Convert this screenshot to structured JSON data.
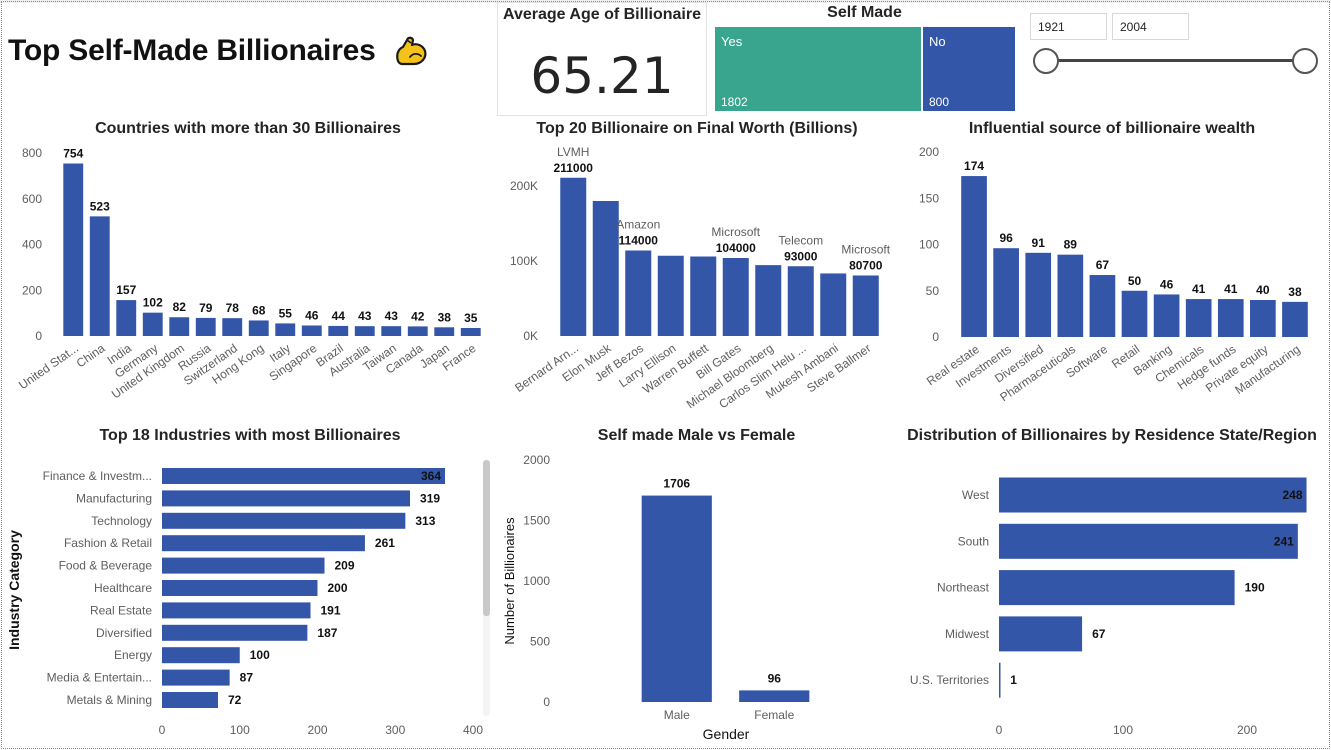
{
  "header": {
    "title": "Top Self-Made Billionaires",
    "icon": "flexed-biceps-icon"
  },
  "kpi": {
    "label": "Average Age of Billionaire",
    "value": "65.21"
  },
  "self_made": {
    "title": "Self Made",
    "tiles": [
      {
        "label": "Yes",
        "count": "1802",
        "color": "#3aa58e"
      },
      {
        "label": "No",
        "count": "800",
        "color": "#3456a8"
      }
    ]
  },
  "year_slicer": {
    "start": "1921",
    "end": "2004",
    "min": 1921,
    "max": 2004
  },
  "colors": {
    "bar": "#3456a8",
    "text": "#252423",
    "axis": "#605e5c"
  },
  "chart_data": [
    {
      "id": "countries",
      "type": "bar",
      "title": "Countries with more than 30 Billionaires",
      "categories": [
        "United Stat...",
        "China",
        "India",
        "Germany",
        "United Kingdom",
        "Russia",
        "Switzerland",
        "Hong Kong",
        "Italy",
        "Singapore",
        "Brazil",
        "Australia",
        "Taiwan",
        "Canada",
        "Japan",
        "France"
      ],
      "values": [
        754,
        523,
        157,
        102,
        82,
        79,
        78,
        68,
        55,
        46,
        44,
        43,
        43,
        42,
        38,
        35
      ],
      "ylim": [
        0,
        800
      ],
      "yticks": [
        "0",
        "200",
        "400",
        "600",
        "800"
      ],
      "ytick_values": [
        0,
        200,
        400,
        600,
        800
      ]
    },
    {
      "id": "top20",
      "type": "bar",
      "title": "Top 20 Billionaire on Final Worth (Billions)",
      "categories": [
        "Bernard Arn...",
        "Elon Musk",
        "Jeff Bezos",
        "Larry Ellison",
        "Warren Buffett",
        "Bill Gates",
        "Michael Bloomberg",
        "Carlos Slim Helu ...",
        "Mukesh Ambani",
        "Steve Ballmer"
      ],
      "values": [
        211000,
        180000,
        114000,
        107000,
        106000,
        104000,
        94500,
        93000,
        83400,
        80700
      ],
      "labels": [
        "211000",
        "",
        "114000",
        "",
        "",
        "104000",
        "",
        "93000",
        "",
        "80700"
      ],
      "sources": [
        "LVMH",
        "",
        "Amazon",
        "",
        "",
        "Microsoft",
        "",
        "Telecom",
        "",
        "Microsoft"
      ],
      "ylim": [
        0,
        240000
      ],
      "yticks": [
        "0K",
        "100K",
        "200K"
      ],
      "ytick_values": [
        0,
        100000,
        200000
      ]
    },
    {
      "id": "sources",
      "type": "bar",
      "title": "Influential source of billionaire wealth",
      "categories": [
        "Real estate",
        "Investments",
        "Diversified",
        "Pharmaceuticals",
        "Software",
        "Retail",
        "Banking",
        "Chemicals",
        "Hedge funds",
        "Private equity",
        "Manufacturing"
      ],
      "values": [
        174,
        96,
        91,
        89,
        67,
        50,
        46,
        41,
        41,
        40,
        38
      ],
      "ylim": [
        0,
        200
      ],
      "yticks": [
        "0",
        "50",
        "100",
        "150",
        "200"
      ],
      "ytick_values": [
        0,
        50,
        100,
        150,
        200
      ]
    },
    {
      "id": "industries",
      "type": "bar",
      "orientation": "horizontal",
      "title": "Top 18 Industries with most Billionaires",
      "ylabel": "Industry Category",
      "categories": [
        "Finance & Investm...",
        "Manufacturing",
        "Technology",
        "Fashion & Retail",
        "Food & Beverage",
        "Healthcare",
        "Real Estate",
        "Diversified",
        "Energy",
        "Media & Entertain...",
        "Metals & Mining"
      ],
      "values": [
        364,
        319,
        313,
        261,
        209,
        200,
        191,
        187,
        100,
        87,
        72
      ],
      "xlim": [
        0,
        400
      ],
      "xticks": [
        "0",
        "100",
        "200",
        "300",
        "400"
      ],
      "xtick_values": [
        0,
        100,
        200,
        300,
        400
      ]
    },
    {
      "id": "gender",
      "type": "bar",
      "title": "Self made Male vs Female",
      "xlabel": "Gender",
      "ylabel": "Number of Billionaires",
      "categories": [
        "Male",
        "Female"
      ],
      "values": [
        1706,
        96
      ],
      "ylim": [
        0,
        2000
      ],
      "yticks": [
        "0",
        "500",
        "1000",
        "1500",
        "2000"
      ],
      "ytick_values": [
        0,
        500,
        1000,
        1500,
        2000
      ]
    },
    {
      "id": "regions",
      "type": "bar",
      "orientation": "horizontal",
      "title": "Distribution of Billionaires by Residence State/Region",
      "categories": [
        "West",
        "South",
        "Northeast",
        "Midwest",
        "U.S. Territories"
      ],
      "values": [
        248,
        241,
        190,
        67,
        1
      ],
      "xlim": [
        0,
        250
      ],
      "xticks": [
        "0",
        "100",
        "200"
      ],
      "xtick_values": [
        0,
        100,
        200
      ]
    }
  ]
}
